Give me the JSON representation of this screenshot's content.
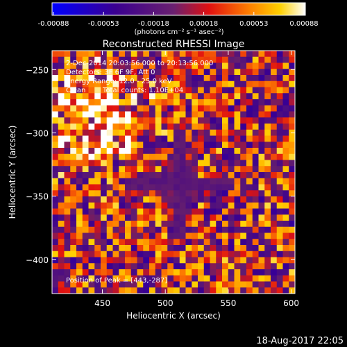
{
  "chart_data": {
    "type": "heatmap",
    "title": "Reconstructed RHESSI Image",
    "xlabel": "Heliocentric X (arcsec)",
    "ylabel": "Heliocentric Y (arcsec)",
    "xlim": [
      410,
      603
    ],
    "ylim": [
      -427,
      -235
    ],
    "xticks": [
      450,
      500,
      550,
      600
    ],
    "yticks": [
      -250,
      -300,
      -350,
      -400
    ],
    "colorbar": {
      "ticks": [
        "-0.00088",
        "-0.00053",
        "-0.00018",
        "0.00018",
        "0.00053",
        "0.00088"
      ],
      "range": [
        -0.00088,
        0.00088
      ],
      "unit_label": "(photons cm⁻² s⁻¹ asec⁻²)"
    },
    "info": {
      "time": "2-Dec-2014 20:03:56.000 to 20:13:56.000",
      "detectors": "Detectors: 3F 6F 9F, Att 0",
      "energy": "Energy Range: 12.0 - 25.0 keV",
      "method": "Clean",
      "counts": "Total counts: 1.10E+04",
      "peak": "Position of Peak = [443,-287]"
    },
    "peak": {
      "x": 443,
      "y": -287
    },
    "footer": "18-Aug-2017 22:05"
  }
}
